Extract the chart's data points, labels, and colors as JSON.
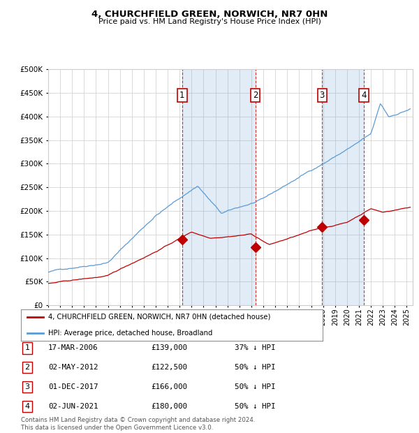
{
  "title": "4, CHURCHFIELD GREEN, NORWICH, NR7 0HN",
  "subtitle": "Price paid vs. HM Land Registry's House Price Index (HPI)",
  "ylim": [
    0,
    500000
  ],
  "yticks": [
    0,
    50000,
    100000,
    150000,
    200000,
    250000,
    300000,
    350000,
    400000,
    450000,
    500000
  ],
  "xlim_start": 1995.0,
  "xlim_end": 2025.5,
  "hpi_color": "#5b9bd5",
  "price_color": "#c00000",
  "sale_dates": [
    2006.21,
    2012.33,
    2017.92,
    2021.42
  ],
  "sale_prices": [
    139000,
    122500,
    166000,
    180000
  ],
  "sale_labels": [
    "1",
    "2",
    "3",
    "4"
  ],
  "legend_entries": [
    "4, CHURCHFIELD GREEN, NORWICH, NR7 0HN (detached house)",
    "HPI: Average price, detached house, Broadland"
  ],
  "table_rows": [
    [
      "1",
      "17-MAR-2006",
      "£139,000",
      "37% ↓ HPI"
    ],
    [
      "2",
      "02-MAY-2012",
      "£122,500",
      "50% ↓ HPI"
    ],
    [
      "3",
      "01-DEC-2017",
      "£166,000",
      "50% ↓ HPI"
    ],
    [
      "4",
      "02-JUN-2021",
      "£180,000",
      "50% ↓ HPI"
    ]
  ],
  "footnote": "Contains HM Land Registry data © Crown copyright and database right 2024.\nThis data is licensed under the Open Government Licence v3.0.",
  "background_color": "#ffffff",
  "grid_color": "#cccccc"
}
